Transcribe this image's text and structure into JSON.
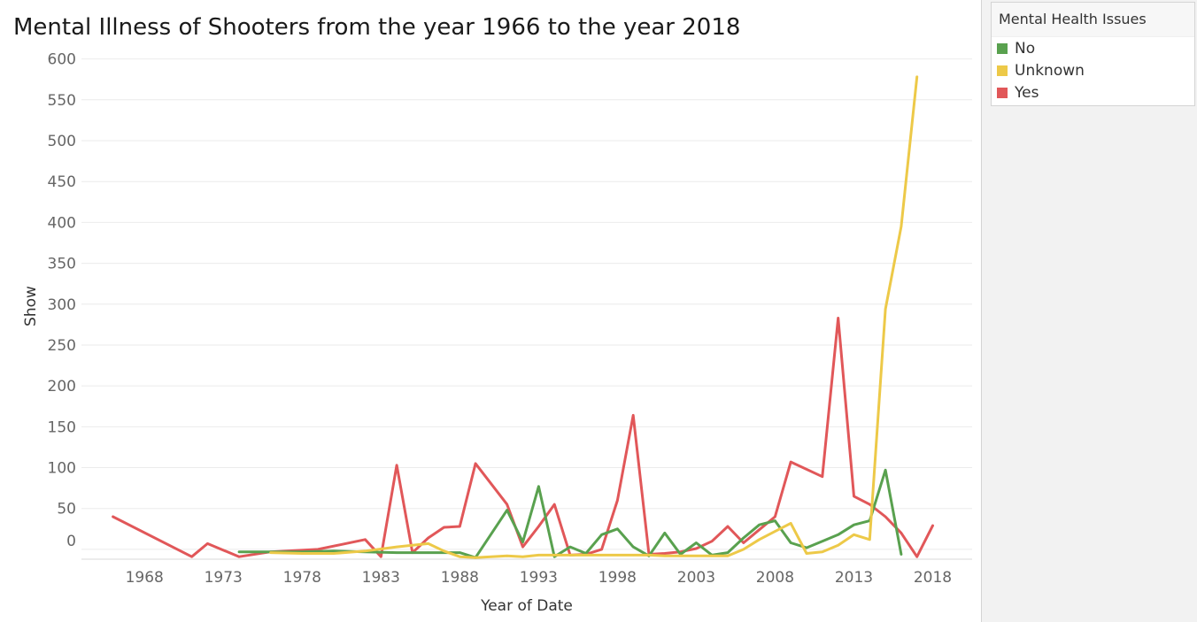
{
  "chart_data": {
    "type": "line",
    "title": "Mental Illness of Shooters from the year 1966 to the year 2018",
    "xlabel": "Year of Date",
    "ylabel": "Show",
    "xlim": [
      1964,
      2020.5
    ],
    "ylim": [
      -12,
      605
    ],
    "x_ticks": [
      1968,
      1973,
      1978,
      1983,
      1988,
      1993,
      1998,
      2003,
      2008,
      2013,
      2018
    ],
    "y_ticks": [
      0,
      50,
      100,
      150,
      200,
      250,
      300,
      350,
      400,
      450,
      500,
      550,
      600
    ],
    "grid": "horizontal",
    "legend": {
      "title": "Mental Health Issues",
      "position": "right",
      "items": [
        {
          "label": "No",
          "color": "#59a14f"
        },
        {
          "label": "Unknown",
          "color": "#edc948"
        },
        {
          "label": "Yes",
          "color": "#e15759"
        }
      ]
    },
    "series": [
      {
        "name": "Yes",
        "color": "#e15759",
        "x": [
          1966,
          1971,
          1972,
          1974,
          1976,
          1979,
          1982,
          1983,
          1984,
          1985,
          1986,
          1987,
          1988,
          1989,
          1991,
          1992,
          1993,
          1994,
          1995,
          1996,
          1997,
          1998,
          1999,
          2000,
          2001,
          2002,
          2003,
          2004,
          2005,
          2006,
          2007,
          2008,
          2009,
          2011,
          2012,
          2013,
          2014,
          2015,
          2016,
          2017,
          2018
        ],
        "y": [
          40,
          -9,
          7,
          -9,
          -3,
          0,
          12,
          -9,
          103,
          -4,
          14,
          27,
          28,
          105,
          55,
          3,
          28,
          55,
          -7,
          -6,
          0,
          60,
          164,
          -6,
          -5,
          -3,
          1,
          10,
          28,
          8,
          24,
          40,
          107,
          89,
          283,
          65,
          55,
          40,
          20,
          -9,
          29
        ]
      },
      {
        "name": "No",
        "color": "#59a14f",
        "x": [
          1974,
          1976,
          1978,
          1980,
          1982,
          1984,
          1986,
          1988,
          1989,
          1991,
          1992,
          1993,
          1994,
          1995,
          1996,
          1997,
          1998,
          1999,
          2000,
          2001,
          2002,
          2003,
          2004,
          2005,
          2006,
          2007,
          2008,
          2009,
          2010,
          2011,
          2012,
          2013,
          2014,
          2015,
          2016
        ],
        "y": [
          -3,
          -3,
          -3,
          -2,
          -3,
          -4,
          -4,
          -4,
          -10,
          48,
          9,
          77,
          -9,
          3,
          -5,
          18,
          25,
          3,
          -8,
          20,
          -6,
          8,
          -7,
          -4,
          14,
          30,
          35,
          8,
          2,
          10,
          18,
          30,
          35,
          97,
          -6
        ]
      },
      {
        "name": "Unknown",
        "color": "#edc948",
        "x": [
          1976,
          1978,
          1980,
          1982,
          1984,
          1986,
          1987,
          1988,
          1989,
          1990,
          1991,
          1992,
          1993,
          1994,
          1995,
          1996,
          1997,
          1998,
          1999,
          2000,
          2001,
          2002,
          2003,
          2004,
          2005,
          2006,
          2007,
          2008,
          2009,
          2010,
          2011,
          2012,
          2013,
          2014,
          2015,
          2016,
          2017
        ],
        "y": [
          -4,
          -5,
          -5,
          -2,
          3,
          7,
          -2,
          -9,
          -10,
          -9,
          -8,
          -9,
          -7,
          -7,
          -7,
          -7,
          -7,
          -7,
          -7,
          -7,
          -8,
          -8,
          -8,
          -8,
          -8,
          0,
          12,
          22,
          32,
          -5,
          -3,
          5,
          18,
          12,
          294,
          395,
          578
        ]
      }
    ]
  }
}
